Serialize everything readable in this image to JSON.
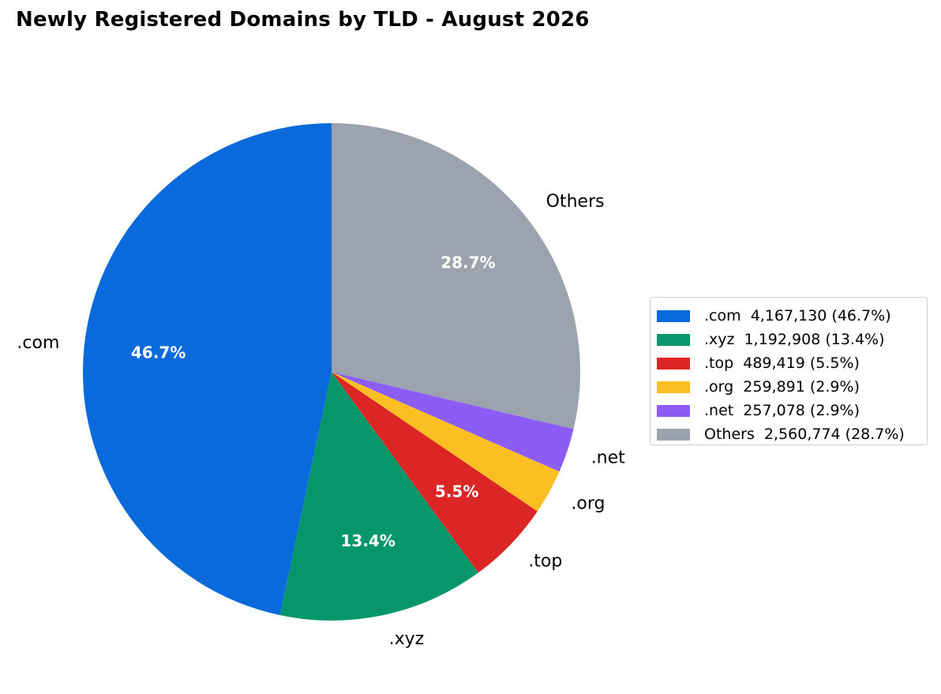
{
  "chart_data": {
    "type": "pie",
    "title": "Newly Registered Domains by TLD - August 2026",
    "slices": [
      {
        "label": ".com",
        "value": 4167130,
        "value_text": "4,167,130",
        "pct": "46.7%",
        "color": "#0a69db"
      },
      {
        "label": ".xyz",
        "value": 1192908,
        "value_text": "1,192,908",
        "pct": "13.4%",
        "color": "#05976a"
      },
      {
        "label": ".top",
        "value": 489419,
        "value_text": "489,419",
        "pct": "5.5%",
        "color": "#dc2626"
      },
      {
        "label": ".org",
        "value": 259891,
        "value_text": "259,891",
        "pct": "2.9%",
        "color": "#fbbf24"
      },
      {
        "label": ".net",
        "value": 257078,
        "value_text": "257,078",
        "pct": "2.9%",
        "color": "#8b5cf6"
      },
      {
        "label": "Others",
        "value": 2560774,
        "value_text": "2,560,774",
        "pct": "28.7%",
        "color": "#9ca3af"
      }
    ],
    "start_angle_deg": 90,
    "direction": "counterclockwise",
    "inner_labels_for": [
      ".com",
      ".xyz",
      ".top",
      "Others"
    ],
    "legend_placement": "right",
    "legend_entries": [
      ".com  4,167,130 (46.7%)",
      ".xyz  1,192,908 (13.4%)",
      ".top  489,419 (5.5%)",
      ".org  259,891 (2.9%)",
      ".net  257,078 (2.9%)",
      "Others  2,560,774 (28.7%)"
    ]
  }
}
